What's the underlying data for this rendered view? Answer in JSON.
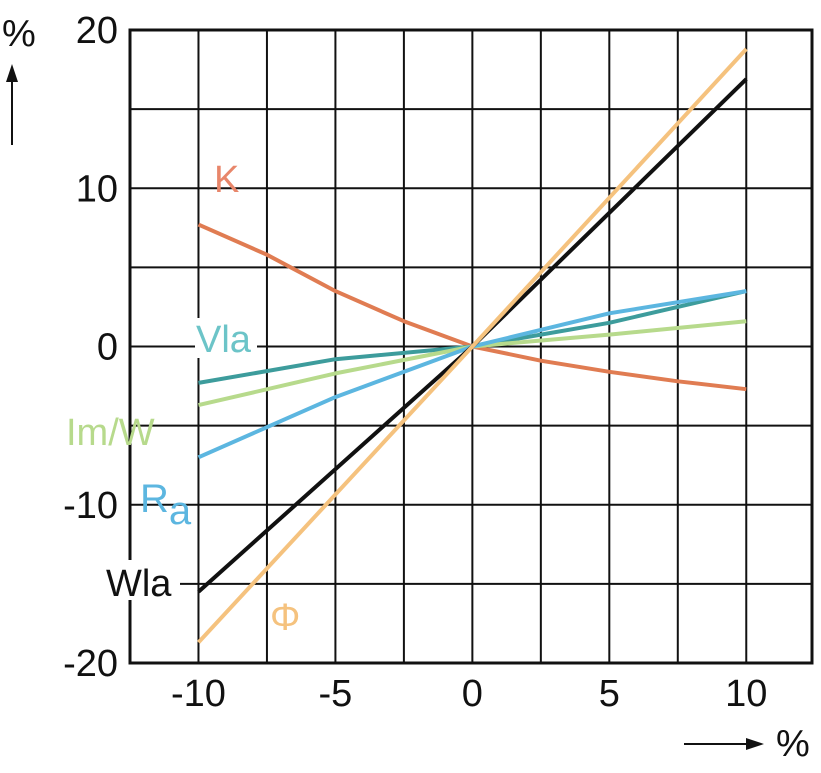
{
  "chart_data": {
    "type": "line",
    "title": "",
    "xlabel": "%",
    "ylabel": "%",
    "xlim": [
      -12.5,
      12.4
    ],
    "ylim": [
      -20,
      20
    ],
    "grid": true,
    "x_grid_step": 2.5,
    "y_grid_step": 5,
    "x_ticks": [
      -10,
      -5,
      0,
      5,
      10
    ],
    "x_tick_labels": [
      "-10",
      "-5",
      "0",
      "5",
      "10"
    ],
    "y_ticks": [
      -20,
      -10,
      0,
      10,
      20
    ],
    "y_tick_labels": [
      "-20",
      "-10",
      "0",
      "10",
      "20"
    ],
    "series": [
      {
        "name": "K",
        "label": "K",
        "color": "#e07c52",
        "x": [
          -10,
          -7.5,
          -5,
          -2.5,
          0,
          2.5,
          5,
          7.5,
          10
        ],
        "y": [
          7.7,
          5.8,
          3.5,
          1.6,
          0,
          -0.9,
          -1.6,
          -2.2,
          -2.7
        ]
      },
      {
        "name": "Vla",
        "label": "Vla",
        "color": "#3d9c9c",
        "x": [
          -10,
          -5,
          0,
          5,
          10
        ],
        "y": [
          -2.3,
          -0.8,
          0,
          1.5,
          3.5
        ]
      },
      {
        "name": "Im/W",
        "label": "Im/W",
        "color": "#b7da8c",
        "x": [
          -10,
          -5,
          0,
          5,
          10
        ],
        "y": [
          -3.7,
          -1.7,
          0,
          0.75,
          1.6
        ]
      },
      {
        "name": "Ra",
        "label_main": "R",
        "label_sub": "a",
        "color": "#5cb6e0",
        "x": [
          -10,
          -7.5,
          -5,
          0,
          5,
          10
        ],
        "y": [
          -7.0,
          -5.1,
          -3.2,
          0,
          2.1,
          3.5
        ]
      },
      {
        "name": "Wla",
        "label": "Wla",
        "color": "#111111",
        "x": [
          -10,
          0,
          10
        ],
        "y": [
          -15.5,
          0,
          16.9
        ]
      },
      {
        "name": "Φ",
        "label": "Φ",
        "color": "#f5c27e",
        "x": [
          -10,
          0,
          10
        ],
        "y": [
          -18.7,
          0,
          18.8
        ]
      }
    ]
  }
}
